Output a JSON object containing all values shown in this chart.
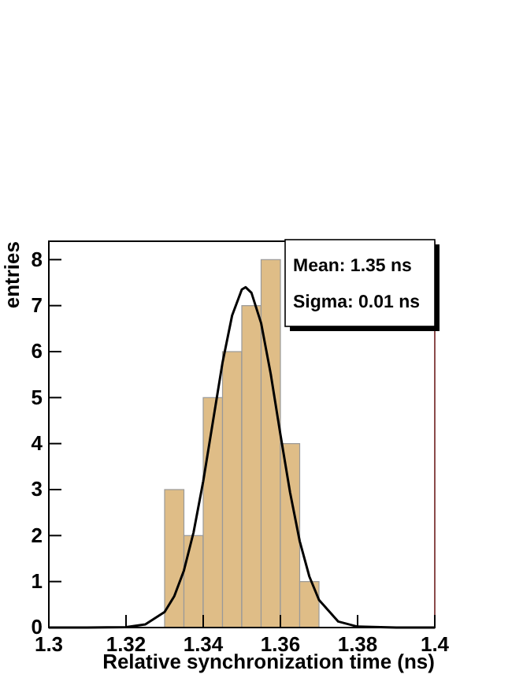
{
  "chart_data": {
    "type": "histogram",
    "xlabel": "Relative synchronization time (ns)",
    "ylabel": "entries",
    "bins": [
      1.33,
      1.335,
      1.34,
      1.345,
      1.35,
      1.355,
      1.36,
      1.365,
      1.37
    ],
    "series": [
      {
        "color": "#dfbd87",
        "values": [
          3,
          2,
          5,
          6,
          7,
          8,
          4,
          1
        ]
      },
      {
        "type": "line",
        "color": "#000000",
        "x": [
          1.3,
          1.31,
          1.32,
          1.325,
          1.33,
          1.3325,
          1.335,
          1.3375,
          1.34,
          1.3425,
          1.345,
          1.3475,
          1.35,
          1.351,
          1.3525,
          1.355,
          1.3575,
          1.36,
          1.3625,
          1.365,
          1.3675,
          1.37,
          1.375,
          1.38,
          1.39,
          1.4
        ],
        "values": [
          0,
          0,
          0.01,
          0.07,
          0.34,
          0.68,
          1.24,
          2.07,
          3.18,
          4.47,
          5.76,
          6.79,
          7.35,
          7.4,
          7.28,
          6.62,
          5.51,
          4.2,
          2.94,
          1.88,
          1.11,
          0.6,
          0.13,
          0.02,
          0,
          0
        ]
      }
    ],
    "xlim": [
      1.3,
      1.4
    ],
    "xticks": [
      {
        "value": 1.3,
        "label": "1.3"
      },
      1.32,
      1.34,
      1.36,
      1.38,
      {
        "value": 1.4,
        "label": "1.4"
      }
    ],
    "ylim": [
      0,
      8.4
    ],
    "yticks": [
      0,
      1,
      2,
      3,
      4,
      5,
      6,
      7,
      8
    ],
    "annotations": [
      "Mean: 1.35 ns",
      "Sigma: 0.01 ns"
    ],
    "grid": false
  }
}
